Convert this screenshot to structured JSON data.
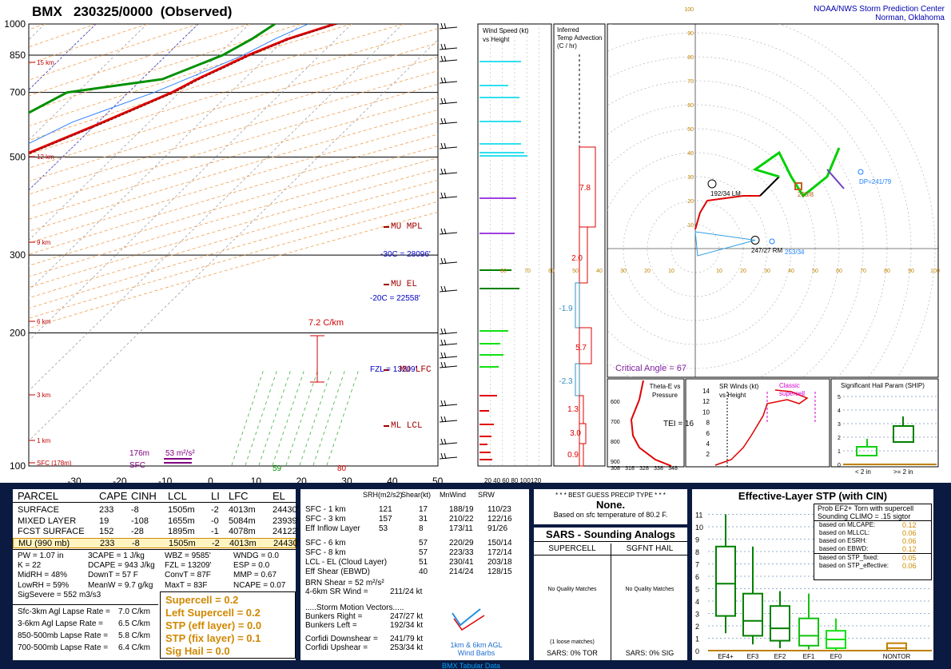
{
  "header": {
    "station": "BMX",
    "datetime": "230325/0000",
    "kind": "(Observed)",
    "center_line1": "NOAA/NWS Storm Prediction Center",
    "center_line2": "Norman, Oklahoma"
  },
  "skewt": {
    "pressure_levels": [
      "100",
      "200",
      "300",
      "500",
      "700",
      "850",
      "1000"
    ],
    "temp_ticks": [
      "-30",
      "-20",
      "-10",
      "0",
      "10",
      "20",
      "30",
      "40",
      "50"
    ],
    "height_labels": [
      "15 km",
      "12 km",
      "9 km",
      "6 km",
      "3 km",
      "1 km",
      "SFC (178m)"
    ],
    "annotations": {
      "mu_mpl": "MU MPL",
      "minus30": "-30C = 28096'",
      "mu_el": "MU EL",
      "minus20": "-20C = 22558'",
      "lapse": "7.2 C/km",
      "fzl": "FZL = 13209'",
      "mu_lfc": "MU LFC",
      "ml_lcl": "ML LCL",
      "eff_top": "176m",
      "eff_srh": "53 m²/s²",
      "sfc": "SFC",
      "sfc_td": "59",
      "sfc_t": "80"
    },
    "chart_data": {
      "type": "line",
      "title": "BMX 230325/0000 (Observed)",
      "x_label": "",
      "y_label": "",
      "series": [
        {
          "name": "Temperature",
          "color": "#e00000",
          "points": [
            [
              1000,
              26.7
            ],
            [
              925,
              20.5
            ],
            [
              850,
              16.0
            ],
            [
              800,
              13.5
            ],
            [
              750,
              10.8
            ],
            [
              700,
              8.5
            ],
            [
              600,
              1.0
            ],
            [
              500,
              -8.5
            ],
            [
              400,
              -20.0
            ],
            [
              300,
              -37.0
            ],
            [
              250,
              -46.0
            ],
            [
              200,
              -54.0
            ],
            [
              150,
              -55.0
            ],
            [
              100,
              -59.0
            ]
          ]
        },
        {
          "name": "Dewpoint",
          "color": "#009000",
          "points": [
            [
              1000,
              15.0
            ],
            [
              925,
              13.5
            ],
            [
              850,
              11.0
            ],
            [
              750,
              4.0
            ],
            [
              700,
              -12.0
            ],
            [
              600,
              -17.0
            ],
            [
              500,
              -22.0
            ],
            [
              400,
              -38.0
            ],
            [
              300,
              -52.0
            ],
            [
              200,
              -62.0
            ],
            [
              150,
              -72.0
            ],
            [
              100,
              -78.0
            ]
          ]
        }
      ]
    }
  },
  "wind_panel": {
    "title1": "Wind Speed (kt)",
    "title2": "vs Height",
    "axis": "20  40  60  80  100120"
  },
  "temp_adv": {
    "title1": "Inferred",
    "title2": "Temp Advection",
    "title3": "(C / hr)",
    "values": [
      "7.8",
      "2.0",
      "-1.9",
      "5.7",
      "-2.3",
      "1.3",
      "3.0",
      "0.9"
    ]
  },
  "hodograph": {
    "rings": [
      "10",
      "20",
      "30",
      "40",
      "50",
      "60",
      "70",
      "80",
      "90",
      "100"
    ],
    "x_ticks": [
      "80",
      "70",
      "60",
      "50",
      "40",
      "30",
      "20",
      "10",
      "10",
      "20",
      "30",
      "40",
      "50",
      "60",
      "70",
      "80",
      "90",
      "100"
    ],
    "labels": {
      "lm": "192/34 LM",
      "rm": "247/27 RM",
      "mean": "253/34",
      "dp": "DP=241/79",
      "m": "233/8",
      "critical": "Critical Angle = 67"
    },
    "chart_data": {
      "type": "line",
      "title": "",
      "x_label": "",
      "y_label": "",
      "series": [
        {
          "name": "",
          "color": "#e00000",
          "points": [
            [
              0,
              8
            ],
            [
              2,
              15
            ],
            [
              5,
              20
            ],
            [
              20,
              22
            ],
            [
              27,
              22
            ]
          ]
        },
        {
          "name": "",
          "color": "#000000",
          "points": [
            [
              27,
              22
            ],
            [
              35,
              30
            ]
          ]
        },
        {
          "name": "",
          "color": "#00d000",
          "points": [
            [
              35,
              30
            ],
            [
              25,
              33
            ],
            [
              35,
              40
            ],
            [
              40,
              30
            ],
            [
              45,
              22
            ],
            [
              55,
              30
            ],
            [
              60,
              42
            ]
          ]
        },
        {
          "name": "",
          "color": "#7040c0",
          "points": [
            [
              55,
              33
            ],
            [
              62,
              25
            ]
          ]
        }
      ]
    }
  },
  "theta_panel": {
    "title1": "Theta-E vs",
    "title2": "Pressure",
    "tei": "TEI = 16",
    "y_ticks": [
      "600",
      "700",
      "800",
      "900"
    ],
    "x_ticks": [
      "308",
      "318",
      "328",
      "338",
      "348"
    ]
  },
  "srw_panel": {
    "title1": "SR Winds (kt)",
    "title2": "vs Height",
    "note1": "Classic",
    "note2": "supercell",
    "y_ticks": [
      "14",
      "12",
      "10",
      "8",
      "6",
      "4",
      "2"
    ]
  },
  "ship_panel": {
    "title": "Significant Hail Param (SHIP)",
    "y_ticks": [
      "5",
      "4",
      "3",
      "2",
      "1",
      "0"
    ],
    "x_labels": [
      "< 2 in",
      ">= 2 in"
    ]
  },
  "parcel_table": {
    "headers": [
      "PARCEL",
      "CAPE",
      "CINH",
      "LCL",
      "LI",
      "LFC",
      "EL"
    ],
    "rows": [
      [
        "SURFACE",
        "233",
        "-8",
        "1505m",
        "-2",
        "4013m",
        "24430'"
      ],
      [
        "MIXED LAYER",
        "19",
        "-108",
        "1655m",
        "-0",
        "5084m",
        "23939'"
      ],
      [
        "FCST SURFACE",
        "152",
        "-28",
        "1895m",
        "-1",
        "4078m",
        "24122'"
      ],
      [
        "MU   (990 mb)",
        "233",
        "-8",
        "1505m",
        "-2",
        "4013m",
        "24430'"
      ]
    ]
  },
  "indices": {
    "col1": [
      "PW = 1.07 in",
      "K = 22",
      "MidRH = 48%",
      "LowRH = 59%",
      "SigSevere = 552 m3/s3"
    ],
    "col2": [
      "3CAPE = 1 J/kg",
      "DCAPE = 943 J/kg",
      "DownT = 57 F",
      "MeanW = 9.7 g/kg"
    ],
    "col3": [
      "WBZ = 9585'",
      "FZL = 13209'",
      "ConvT = 87F",
      "MaxT = 83F"
    ],
    "col4": [
      "WNDG = 0.0",
      "ESP = 0.0",
      "MMP = 0.67",
      "NCAPE = 0.07"
    ]
  },
  "lapse_rates": [
    [
      "Sfc-3km Agl Lapse Rate =",
      "7.0 C/km"
    ],
    [
      "3-6km Agl Lapse Rate =",
      "6.5 C/km"
    ],
    [
      "850-500mb Lapse Rate =",
      "5.8 C/km"
    ],
    [
      "700-500mb Lapse Rate =",
      "6.4 C/km"
    ]
  ],
  "composite": [
    "Supercell = 0.2",
    "Left Supercell = 0.2",
    "STP (eff layer) = 0.0",
    "STP (fix layer) = 0.1",
    "Sig Hail = 0.0"
  ],
  "kinematics": {
    "headers": [
      "SRH(m2/s2)",
      "Shear(kt)",
      "MnWind",
      "SRW"
    ],
    "rows": [
      [
        "SFC - 1 km",
        "121",
        "17",
        "188/19",
        "110/23"
      ],
      [
        "SFC - 3 km",
        "157",
        "31",
        "210/22",
        "122/16"
      ],
      [
        "Eff Inflow Layer",
        "53",
        "8",
        "173/11",
        "91/26"
      ],
      [
        "SFC - 6 km",
        "",
        "57",
        "220/29",
        "150/14"
      ],
      [
        "SFC - 8 km",
        "",
        "57",
        "223/33",
        "172/14"
      ],
      [
        "LCL - EL (Cloud Layer)",
        "",
        "51",
        "230/41",
        "203/18"
      ],
      [
        "Eff Shear (EBWD)",
        "",
        "40",
        "214/24",
        "128/15"
      ]
    ],
    "brn": "BRN Shear =  52 m²/s²",
    "srwind": "4-6km SR Wind =",
    "srwind_val": "211/24 kt",
    "vectors_title": ".....Storm Motion Vectors.....",
    "vectors": [
      [
        "Bunkers Right =",
        "247/27 kt"
      ],
      [
        "Bunkers Left =",
        "192/34 kt"
      ],
      [
        "Corfidi Downshear =",
        "241/79 kt"
      ],
      [
        "Corfidi Upshear =",
        "253/34 kt"
      ]
    ],
    "barb_caption1": "1km & 6km AGL",
    "barb_caption2": "Wind Barbs"
  },
  "precip": {
    "title": "* * * BEST GUESS PRECIP TYPE * * *",
    "value": "None.",
    "note": "Based on sfc temperature of 80.2 F."
  },
  "sars": {
    "title": "SARS - Sounding Analogs",
    "col1": "SUPERCELL",
    "col2": "SGFNT HAIL",
    "no_match": "No Quality Matches",
    "loose": "(1 loose matches)",
    "tor": "SARS:  0% TOR",
    "sig": "SARS:  0% SIG"
  },
  "stp": {
    "title": "Effective-Layer STP (with CIN)",
    "prob_title1": "Prob EF2+ Torn with supercell",
    "prob_title2": "Sounding CLIMO = .15 sigtor",
    "probs": [
      [
        "based on MLCAPE:",
        "0.12"
      ],
      [
        "based on MLLCL:",
        "0.06"
      ],
      [
        "based on ESRH:",
        "0.06"
      ],
      [
        "based on EBWD:",
        "0.12"
      ],
      [
        "based on STP_fixed:",
        "0.05"
      ],
      [
        "based on STP_effective:",
        "0.06"
      ]
    ],
    "y_ticks": [
      "11",
      "10",
      "9",
      "8",
      "7",
      "6",
      "5",
      "4",
      "3",
      "2",
      "1",
      "0"
    ],
    "categories": [
      "EF4+",
      "EF3",
      "EF2",
      "EF1",
      "EF0",
      "NONTOR"
    ]
  },
  "footer": "BMX Tabular Data"
}
